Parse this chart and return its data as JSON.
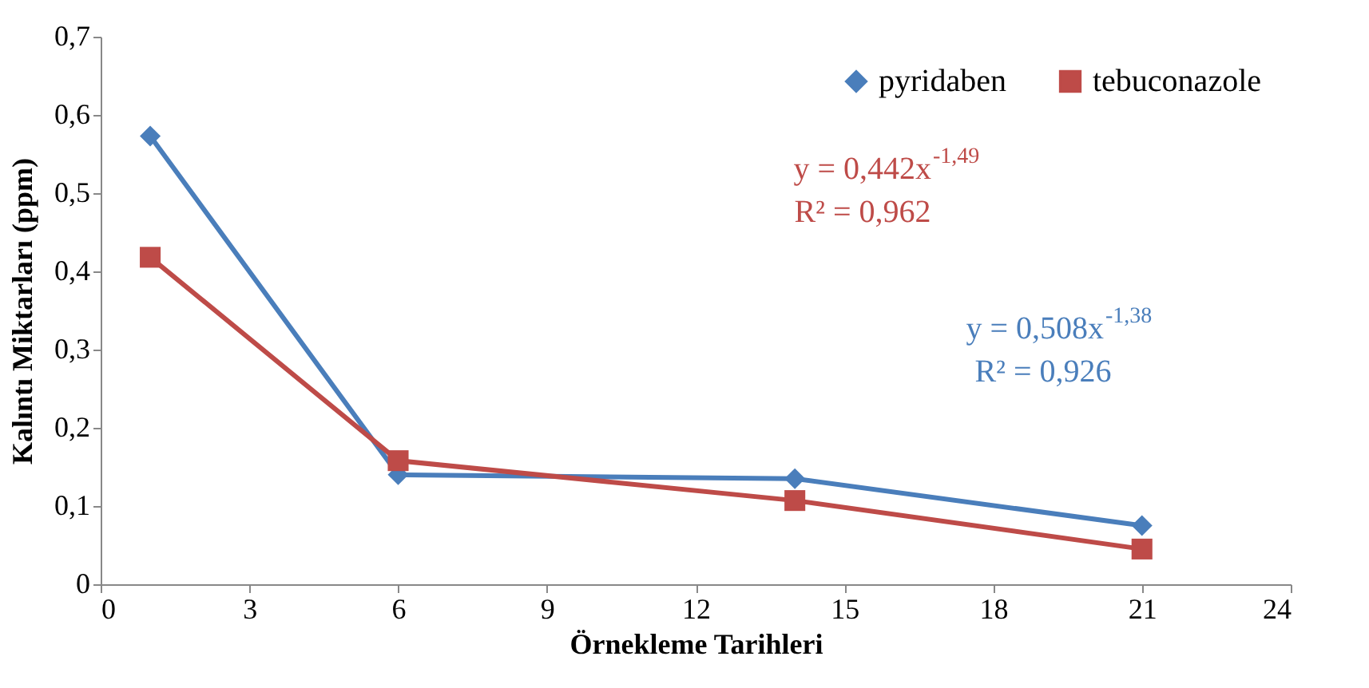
{
  "chart_data": {
    "type": "line",
    "xlabel": "Örnekleme Tarihleri",
    "ylabel": "Kalıntı Miktarları (ppm)",
    "x": [
      1,
      6,
      14,
      21
    ],
    "series": [
      {
        "name": "pyridaben",
        "color": "#4a7ebb",
        "marker": "diamond",
        "values": [
          0.573,
          0.14,
          0.135,
          0.075
        ]
      },
      {
        "name": "tebuconazole",
        "color": "#be4b48",
        "marker": "square",
        "values": [
          0.418,
          0.158,
          0.107,
          0.045
        ]
      }
    ],
    "xlim": [
      0,
      24
    ],
    "xticks": [
      0,
      3,
      6,
      9,
      12,
      15,
      18,
      21,
      24
    ],
    "ylim": [
      0,
      0.7
    ],
    "yticks": [
      0,
      {
        "value": 0.1,
        "label": "0,1"
      },
      {
        "value": 0.2,
        "label": "0,2"
      },
      {
        "value": 0.3,
        "label": "0,3"
      },
      {
        "value": 0.4,
        "label": "0,4"
      },
      {
        "value": 0.5,
        "label": "0,5"
      },
      {
        "value": 0.6,
        "label": "0,6"
      },
      {
        "value": 0.7,
        "label": "0,7"
      }
    ],
    "annotations": [
      "y = 0,508x$^{-1,38}$",
      "R² = 0,926",
      "y = 0,442x$^{-1,49}$",
      "R² = 0,962"
    ],
    "grid": false,
    "legend": "top right",
    "line_style": "solid"
  }
}
